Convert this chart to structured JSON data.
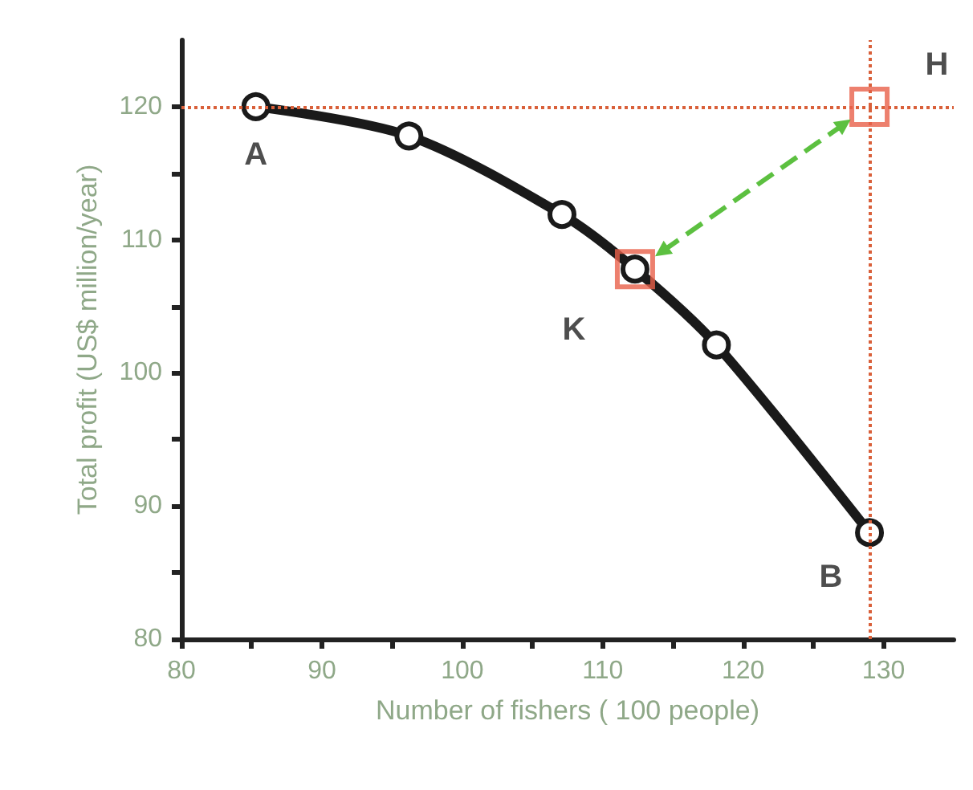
{
  "chart_data": {
    "type": "line",
    "xlabel": "Number of fishers ( 100 people)",
    "ylabel": "Total profit (US$ million/year)",
    "xlim": [
      80,
      135
    ],
    "ylim": [
      80,
      125
    ],
    "xticks": [
      80,
      {
        "value": 85,
        "label": null
      },
      90,
      {
        "value": 95,
        "label": null
      },
      100,
      {
        "value": 105,
        "label": null
      },
      110,
      {
        "value": 115,
        "label": null
      },
      120,
      {
        "value": 125,
        "label": null
      },
      130
    ],
    "yticks": [
      80,
      {
        "value": 85,
        "label": null
      },
      90,
      {
        "value": 95,
        "label": null
      },
      100,
      {
        "value": 105,
        "label": null
      },
      110,
      {
        "value": 115,
        "label": null
      },
      120
    ],
    "series": [
      {
        "color": "#1a1a1a",
        "marker": "circle",
        "line_style": "solid",
        "x": [
          85.3,
          96.2,
          107.1,
          112.3,
          118.1,
          129
        ],
        "values": [
          120,
          117.8,
          111.9,
          107.8,
          102.1,
          88
        ]
      },
      {
        "type": "scatter",
        "color": "#e8604a",
        "marker": "square",
        "x": [
          112.3,
          129
        ],
        "values": [
          107.8,
          120
        ]
      },
      {
        "color": "#5cc040",
        "marker": "triangle",
        "line_style": "dashed",
        "x": [
          127.2,
          114.2
        ],
        "values": [
          118.7,
          109.1
        ]
      }
    ],
    "ref_lines": [
      {
        "axis": "y",
        "value": 120,
        "color": "#d9603a",
        "line_style": "dotted"
      },
      {
        "axis": "x",
        "value": 129,
        "color": "#d9603a",
        "line_style": "dotted"
      }
    ],
    "annotations": [
      {
        "text": "A",
        "x": 85.3,
        "y": 120
      },
      {
        "text": "K",
        "x": 112.3,
        "y": 107.8
      },
      {
        "text": "H",
        "x": 129,
        "y": 120
      },
      {
        "text": "B",
        "x": 129,
        "y": 88
      }
    ]
  }
}
